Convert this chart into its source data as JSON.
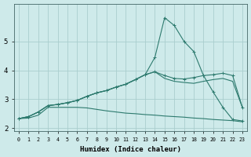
{
  "xlabel": "Humidex (Indice chaleur)",
  "background_color": "#ceeaea",
  "grid_color_major": "#aacece",
  "grid_color_minor": "#f5c8c8",
  "line_color": "#2d7a6e",
  "xlim": [
    -0.5,
    23.5
  ],
  "ylim": [
    1.9,
    6.3
  ],
  "xticks": [
    0,
    1,
    2,
    3,
    4,
    5,
    6,
    7,
    8,
    9,
    10,
    11,
    12,
    13,
    14,
    15,
    16,
    17,
    18,
    19,
    20,
    21,
    22,
    23
  ],
  "yticks": [
    2,
    3,
    4,
    5
  ],
  "series": [
    [
      2.33,
      2.4,
      2.56,
      2.78,
      2.82,
      2.88,
      2.96,
      3.1,
      3.22,
      3.3,
      3.42,
      3.52,
      3.68,
      3.85,
      4.45,
      5.82,
      5.55,
      5.0,
      4.65,
      3.82,
      3.25,
      2.72,
      2.3,
      2.25
    ],
    [
      2.33,
      2.4,
      2.56,
      2.78,
      2.82,
      2.88,
      2.96,
      3.1,
      3.22,
      3.3,
      3.42,
      3.52,
      3.68,
      3.85,
      3.95,
      3.82,
      3.72,
      3.7,
      3.75,
      3.82,
      3.85,
      3.9,
      3.82,
      2.72
    ],
    [
      2.33,
      2.4,
      2.56,
      2.78,
      2.82,
      2.88,
      2.96,
      3.1,
      3.22,
      3.3,
      3.42,
      3.52,
      3.68,
      3.85,
      3.95,
      3.72,
      3.62,
      3.58,
      3.55,
      3.62,
      3.68,
      3.72,
      3.62,
      2.72
    ],
    [
      2.33,
      2.35,
      2.45,
      2.72,
      2.72,
      2.72,
      2.72,
      2.7,
      2.65,
      2.6,
      2.56,
      2.52,
      2.5,
      2.47,
      2.45,
      2.42,
      2.4,
      2.38,
      2.35,
      2.33,
      2.3,
      2.28,
      2.26,
      2.22
    ]
  ]
}
